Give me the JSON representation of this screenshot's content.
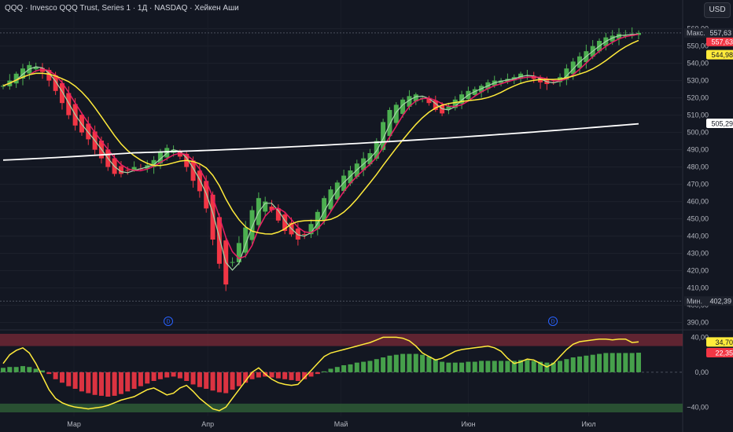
{
  "header": {
    "title": "QQQ · Invesco QQQ Trust, Series 1 · 1Д · NASDAQ · Хейкен Аши",
    "currency": "USD"
  },
  "colors": {
    "background": "#131722",
    "up": "#4caf50",
    "down": "#f23645",
    "ma_fast": "#a5d6a7",
    "ma_mid": "#e91e63",
    "ma_slow": "#ffeb3b",
    "ma_long": "#ffffff",
    "osc_line": "#ffeb3b",
    "overbought_band": "#7a2a37",
    "oversold_band": "#2e5a35"
  },
  "chart_data": [
    {
      "type": "candlestick",
      "title": "",
      "x_labels": [
        "Мар",
        "Апр",
        "Май",
        "Июн",
        "Июл"
      ],
      "y_ticks": [
        "560,00",
        "550,00",
        "540,00",
        "530,00",
        "520,00",
        "510,00",
        "500,00",
        "490,00",
        "480,00",
        "470,00",
        "460,00",
        "450,00",
        "440,00",
        "430,00",
        "420,00",
        "410,00",
        "400,00",
        "390,00"
      ],
      "ylim": [
        388,
        563
      ],
      "high_marker": {
        "label": "Макс.",
        "value": "557,63"
      },
      "low_marker": {
        "label": "Мин.",
        "value": "402,39"
      },
      "last_price": "557,63",
      "price_tags": [
        {
          "value": "544,98",
          "color": "#ffeb3b"
        },
        {
          "value": "505,29",
          "color": "#ffffff"
        }
      ],
      "events": [
        "D",
        "D"
      ],
      "closes": [
        527,
        530,
        534,
        537,
        539,
        538,
        535,
        530,
        524,
        517,
        510,
        504,
        500,
        496,
        490,
        485,
        480,
        476,
        476,
        478,
        480,
        479,
        481,
        484,
        489,
        491,
        490,
        486,
        480,
        472,
        466,
        456,
        438,
        424,
        412,
        425,
        436,
        445,
        455,
        462,
        460,
        455,
        449,
        443,
        441,
        438,
        441,
        447,
        454,
        462,
        467,
        471,
        475,
        478,
        482,
        485,
        488,
        495,
        506,
        513,
        516,
        519,
        521,
        522,
        520,
        517,
        513,
        511,
        515,
        519,
        522,
        524,
        525,
        527,
        529,
        530,
        530,
        531,
        532,
        534,
        533,
        531,
        529,
        528,
        529,
        532,
        537,
        541,
        544,
        547,
        550,
        553,
        555,
        556,
        557,
        556,
        557,
        557.6
      ]
    },
    {
      "type": "oscillator",
      "y_ticks": [
        "40,00",
        "0,00",
        "−40,00"
      ],
      "ylim": [
        -46,
        44
      ],
      "line_value": "34,70",
      "hist_value": "22,35",
      "hist": [
        5,
        6,
        6,
        7,
        6,
        4,
        2,
        -2,
        -8,
        -12,
        -16,
        -19,
        -22,
        -24,
        -26,
        -27,
        -28,
        -27,
        -25,
        -22,
        -19,
        -16,
        -13,
        -10,
        -8,
        -6,
        -5,
        -7,
        -10,
        -14,
        -17,
        -19,
        -21,
        -23,
        -24,
        -20,
        -16,
        -12,
        -8,
        -6,
        -5,
        -6,
        -7,
        -8,
        -9,
        -10,
        -8,
        -5,
        -2,
        1,
        4,
        6,
        8,
        9,
        11,
        12,
        13,
        15,
        17,
        19,
        20,
        21,
        21,
        21,
        20,
        18,
        15,
        12,
        11,
        11,
        11,
        12,
        12,
        13,
        13,
        13,
        13,
        13,
        13,
        14,
        14,
        13,
        12,
        11,
        11,
        13,
        15,
        17,
        18,
        19,
        20,
        21,
        22,
        22,
        22,
        22,
        22,
        22.35
      ],
      "line": [
        10,
        20,
        25,
        28,
        22,
        10,
        -5,
        -20,
        -30,
        -35,
        -38,
        -40,
        -41,
        -42,
        -41,
        -40,
        -38,
        -35,
        -32,
        -30,
        -28,
        -24,
        -20,
        -18,
        -22,
        -26,
        -24,
        -18,
        -15,
        -22,
        -30,
        -36,
        -42,
        -44,
        -40,
        -30,
        -20,
        -10,
        0,
        5,
        -2,
        -8,
        -12,
        -14,
        -15,
        -14,
        -6,
        2,
        10,
        18,
        22,
        24,
        26,
        28,
        30,
        32,
        34,
        37,
        40,
        40,
        40,
        39,
        36,
        30,
        22,
        18,
        14,
        16,
        20,
        24,
        26,
        27,
        28,
        29,
        30,
        28,
        24,
        16,
        10,
        12,
        15,
        14,
        10,
        6,
        10,
        18,
        26,
        32,
        35,
        36,
        37,
        38,
        38,
        37,
        38,
        38,
        34,
        34.7
      ]
    }
  ]
}
